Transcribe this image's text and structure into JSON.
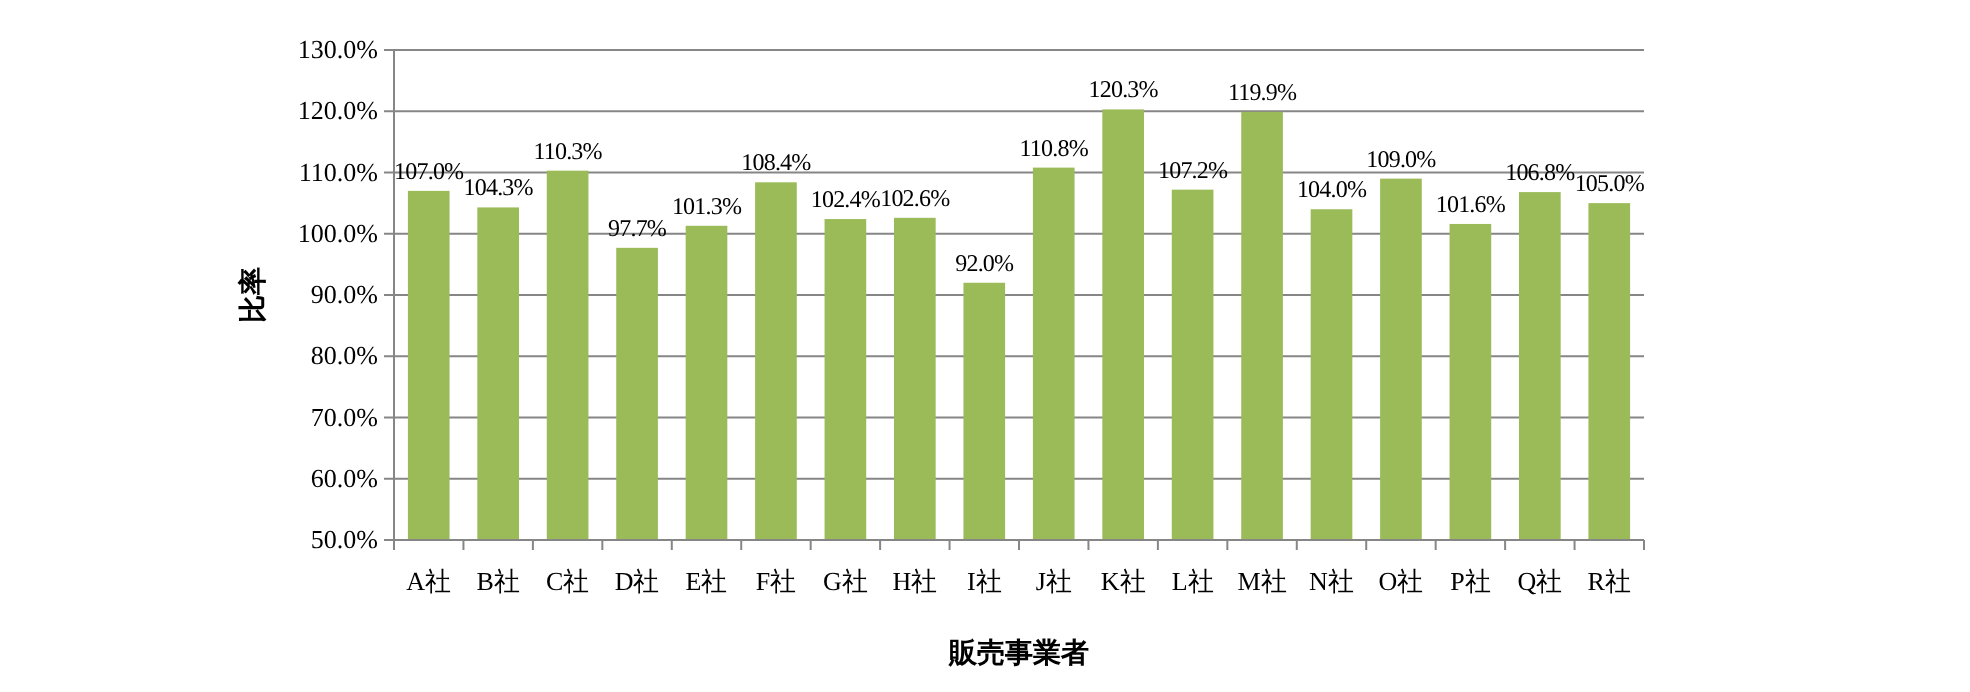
{
  "chart_data": {
    "type": "bar",
    "xlabel": "販売事業者",
    "ylabel": "比率",
    "categories": [
      "A社",
      "B社",
      "C社",
      "D社",
      "E社",
      "F社",
      "G社",
      "H社",
      "I社",
      "J社",
      "K社",
      "L社",
      "M社",
      "N社",
      "O社",
      "P社",
      "Q社",
      "R社"
    ],
    "values": [
      107.0,
      104.3,
      110.3,
      97.7,
      101.3,
      108.4,
      102.4,
      102.6,
      92.0,
      110.8,
      120.3,
      107.2,
      119.9,
      104.0,
      109.0,
      101.6,
      106.8,
      105.0
    ],
    "value_labels": [
      "107.0%",
      "104.3%",
      "110.3%",
      "97.7%",
      "101.3%",
      "108.4%",
      "102.4%",
      "102.6%",
      "92.0%",
      "110.8%",
      "120.3%",
      "107.2%",
      "119.9%",
      "104.0%",
      "109.0%",
      "101.6%",
      "106.8%",
      "105.0%"
    ],
    "color": "#9bbb59",
    "ylim": [
      50,
      130
    ],
    "yticks": [
      {
        "value": 50,
        "label": "50.0%"
      },
      {
        "value": 60,
        "label": "60.0%"
      },
      {
        "value": 70,
        "label": "70.0%"
      },
      {
        "value": 80,
        "label": "80.0%"
      },
      {
        "value": 90,
        "label": "90.0%"
      },
      {
        "value": 100,
        "label": "100.0%"
      },
      {
        "value": 110,
        "label": "110.0%"
      },
      {
        "value": 120,
        "label": "120.0%"
      },
      {
        "value": 130,
        "label": "130.0%"
      }
    ],
    "grid": "y"
  }
}
